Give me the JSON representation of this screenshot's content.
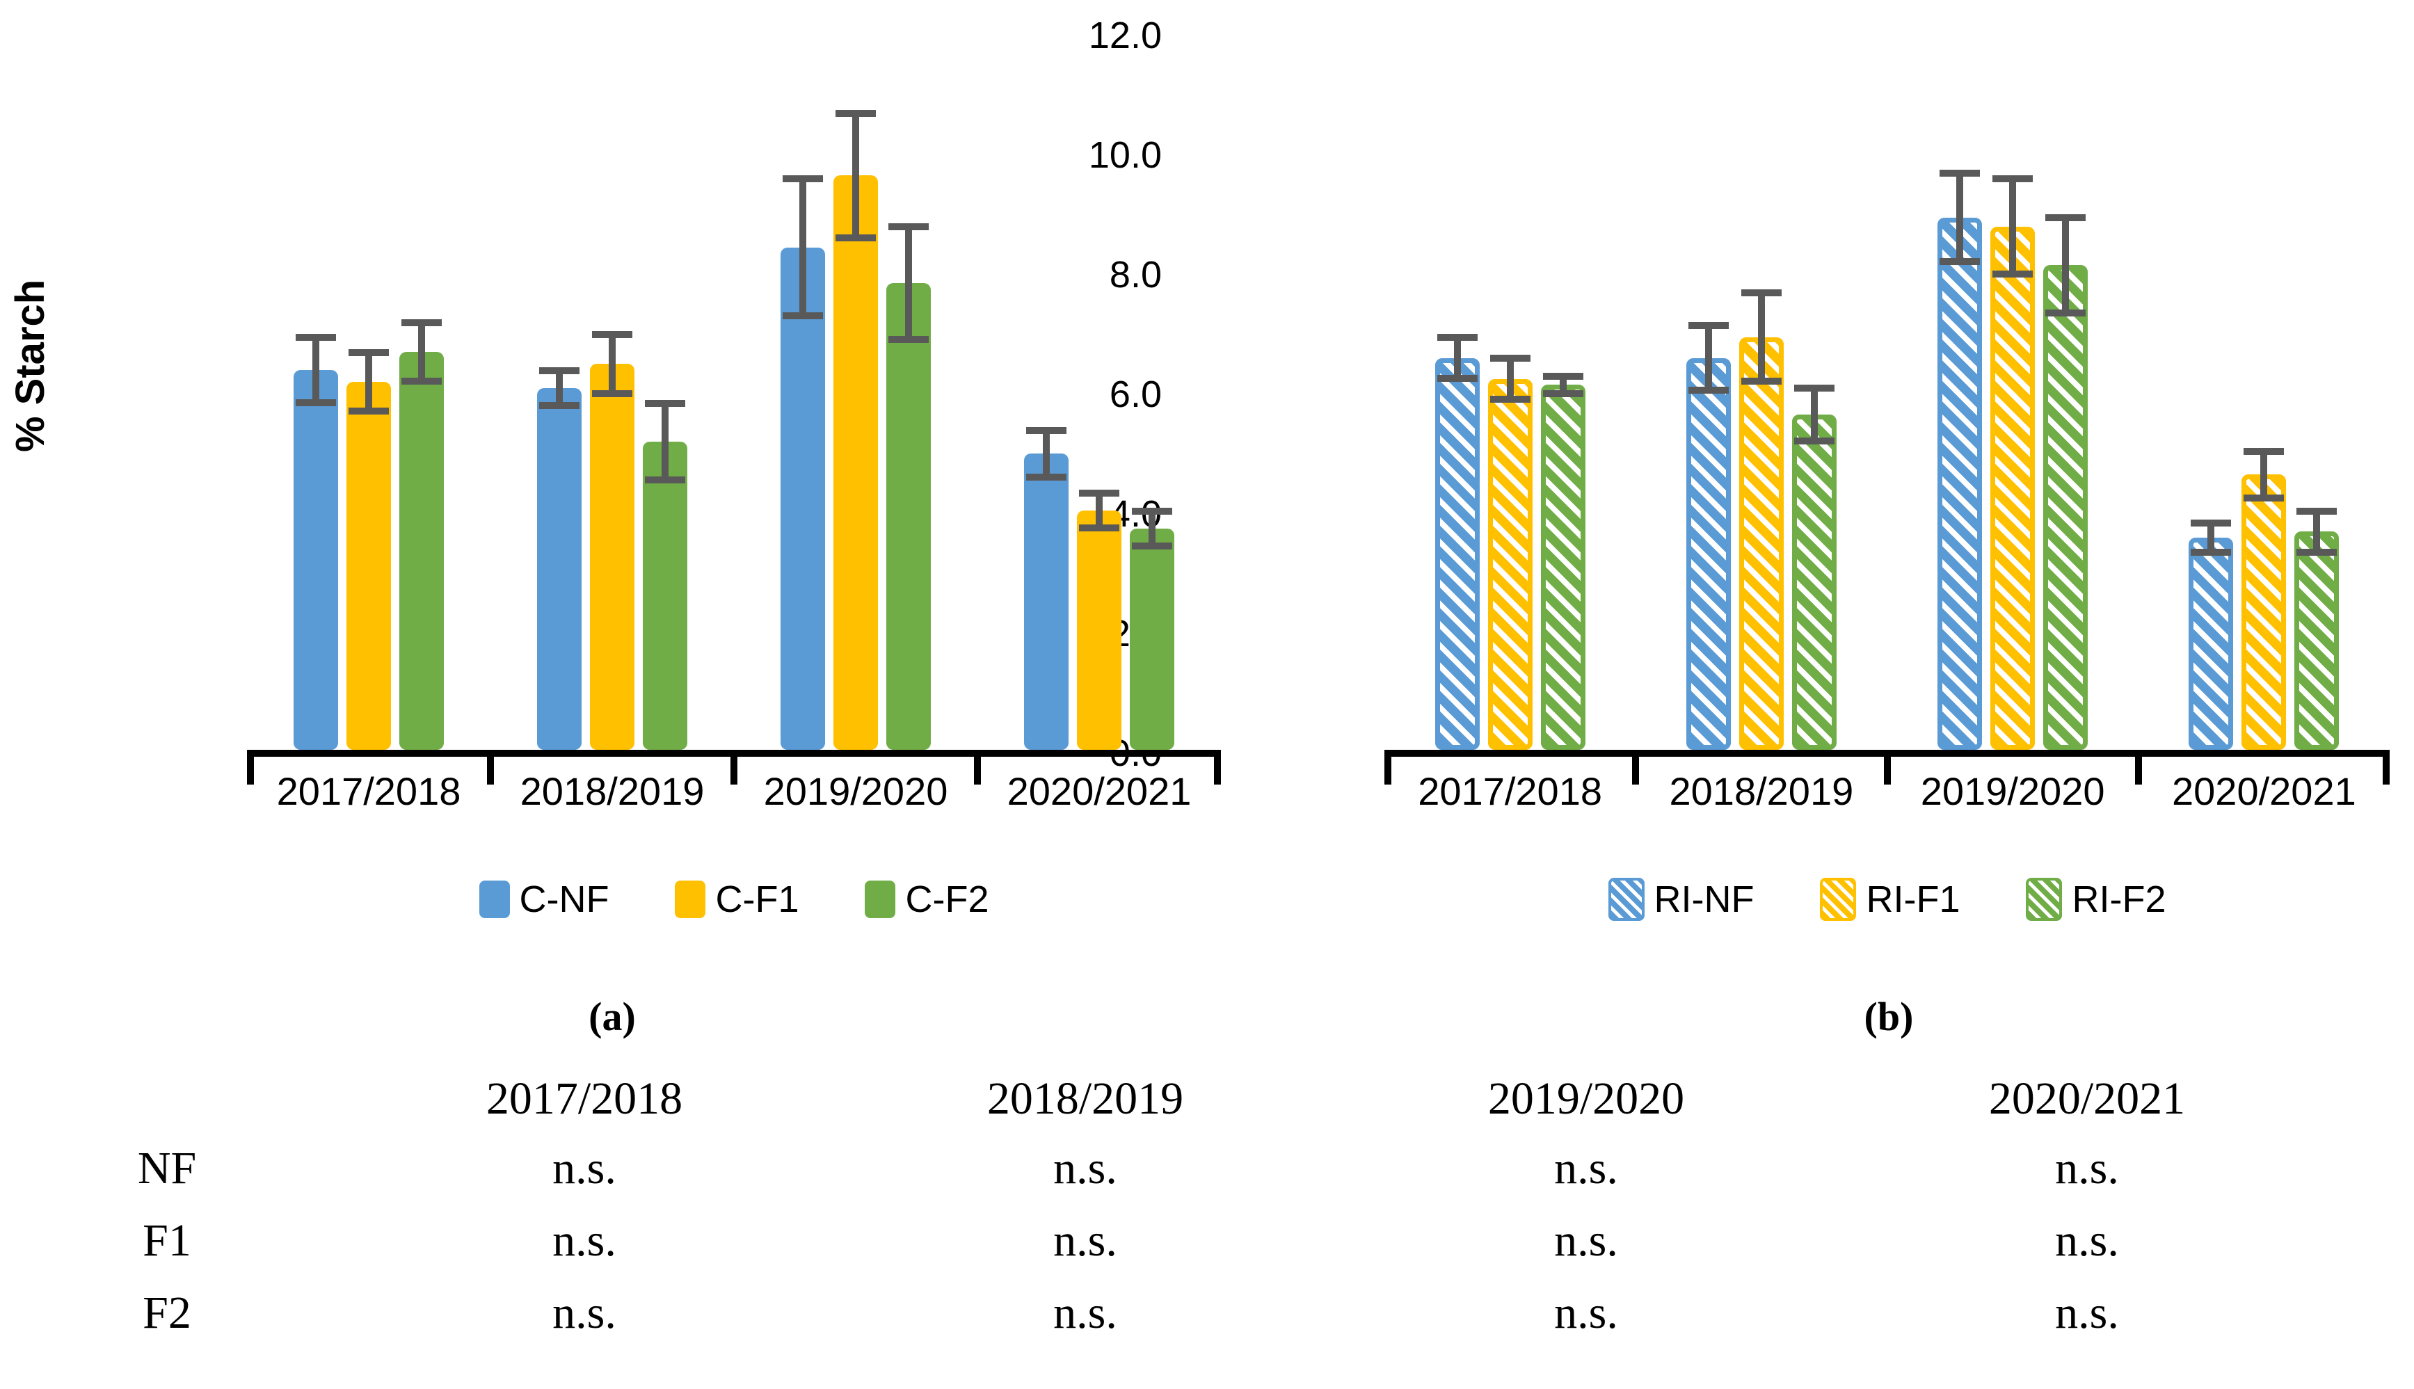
{
  "colors": {
    "blue": "#5B9BD5",
    "yellow": "#FFC000",
    "green": "#70AD47",
    "error_bar": "#595959",
    "axis": "#000000"
  },
  "yaxis": {
    "title": "% Starch",
    "min": 0,
    "max": 12,
    "tick_step": 2,
    "tick_labels": [
      "0.0",
      "2.0",
      "4.0",
      "6.0",
      "8.0",
      "10.0",
      "12.0"
    ]
  },
  "captions": {
    "a": "(a)",
    "b": "(b)"
  },
  "chart_data": [
    {
      "type": "bar",
      "panel": "a",
      "title": "",
      "xlabel": "",
      "ylabel": "% Starch",
      "ylim": [
        0,
        12
      ],
      "grid": false,
      "legend_position": "bottom",
      "hatched": false,
      "categories": [
        "2017/2018",
        "2018/2019",
        "2019/2020",
        "2020/2021"
      ],
      "series": [
        {
          "name": "C-NF",
          "color": "#5B9BD5",
          "values": [
            6.35,
            6.05,
            8.4,
            4.95
          ],
          "errors": [
            0.6,
            0.35,
            1.2,
            0.45
          ]
        },
        {
          "name": "C-F1",
          "color": "#FFC000",
          "values": [
            6.15,
            6.45,
            9.6,
            4.0
          ],
          "errors": [
            0.55,
            0.55,
            1.1,
            0.35
          ]
        },
        {
          "name": "C-F2",
          "color": "#70AD47",
          "values": [
            6.65,
            5.15,
            7.8,
            3.7
          ],
          "errors": [
            0.55,
            0.7,
            1.0,
            0.35
          ]
        }
      ]
    },
    {
      "type": "bar",
      "panel": "b",
      "title": "",
      "xlabel": "",
      "ylabel": "",
      "ylim": [
        0,
        12
      ],
      "grid": false,
      "legend_position": "bottom",
      "hatched": true,
      "categories": [
        "2017/2018",
        "2018/2019",
        "2019/2020",
        "2020/2021"
      ],
      "series": [
        {
          "name": "RI-NF",
          "color": "#5B9BD5",
          "values": [
            6.55,
            6.55,
            8.9,
            3.55
          ],
          "errors": [
            0.4,
            0.6,
            0.8,
            0.3
          ]
        },
        {
          "name": "RI-F1",
          "color": "#FFC000",
          "values": [
            6.2,
            6.9,
            8.75,
            4.6
          ],
          "errors": [
            0.4,
            0.8,
            0.85,
            0.45
          ]
        },
        {
          "name": "RI-F2",
          "color": "#70AD47",
          "values": [
            6.1,
            5.6,
            8.1,
            3.65
          ],
          "errors": [
            0.2,
            0.5,
            0.85,
            0.4
          ]
        }
      ]
    }
  ],
  "table": {
    "header": [
      "",
      "2017/2018",
      "2018/2019",
      "2019/2020",
      "2020/2021"
    ],
    "rows": [
      {
        "label": "NF",
        "values": [
          "n.s.",
          "n.s.",
          "n.s.",
          "n.s."
        ]
      },
      {
        "label": "F1",
        "values": [
          "n.s.",
          "n.s.",
          "n.s.",
          "n.s."
        ]
      },
      {
        "label": "F2",
        "values": [
          "n.s.",
          "n.s.",
          "n.s.",
          "n.s."
        ]
      }
    ]
  }
}
